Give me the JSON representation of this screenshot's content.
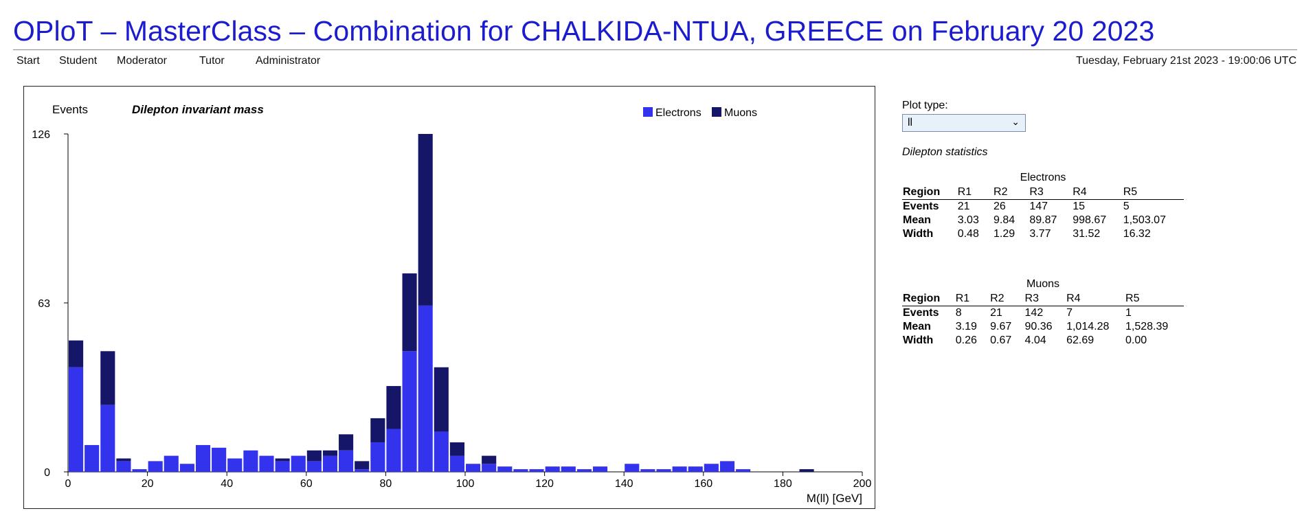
{
  "header": {
    "title": "OPloT – MasterClass – Combination for CHALKIDA-NTUA, GREECE on February 20 2023",
    "nav": [
      "Start",
      "Student",
      "Moderator",
      "Tutor",
      "Administrator"
    ],
    "datetime": "Tuesday, February 21st 2023 - 19:00:06 UTC"
  },
  "sidebar": {
    "plot_type_label": "Plot type:",
    "plot_type_value": "ll",
    "stats_title": "Dilepton statistics",
    "tables": [
      {
        "caption": "Electrons",
        "columns": [
          "Region",
          "R1",
          "R2",
          "R3",
          "R4",
          "R5"
        ],
        "rows": [
          [
            "Events",
            "21",
            "26",
            "147",
            "15",
            "5"
          ],
          [
            "Mean",
            "3.03",
            "9.84",
            "89.87",
            "998.67",
            "1,503.07"
          ],
          [
            "Width",
            "0.48",
            "1.29",
            "3.77",
            "31.52",
            "16.32"
          ]
        ]
      },
      {
        "caption": "Muons",
        "columns": [
          "Region",
          "R1",
          "R2",
          "R3",
          "R4",
          "R5"
        ],
        "rows": [
          [
            "Events",
            "8",
            "21",
            "142",
            "7",
            "1"
          ],
          [
            "Mean",
            "3.19",
            "9.67",
            "90.36",
            "1,014.28",
            "1,528.39"
          ],
          [
            "Width",
            "0.26",
            "0.67",
            "4.04",
            "62.69",
            "0.00"
          ]
        ]
      }
    ]
  },
  "chart_data": {
    "type": "bar",
    "stacked": true,
    "title": "Dilepton invariant mass",
    "ylabel": "Events",
    "xlabel": "M(ll) [GeV]",
    "xlim": [
      0,
      200
    ],
    "ylim": [
      0,
      126
    ],
    "x_ticks": [
      "0",
      "20",
      "40",
      "60",
      "80",
      "100",
      "120",
      "140",
      "160",
      "180",
      "200"
    ],
    "y_ticks": [
      "0",
      "63",
      "126"
    ],
    "bin_width": 4,
    "bin_starts": [
      0,
      4,
      8,
      12,
      16,
      20,
      24,
      28,
      32,
      36,
      40,
      44,
      48,
      52,
      56,
      60,
      64,
      68,
      72,
      76,
      80,
      84,
      88,
      92,
      96,
      100,
      104,
      108,
      112,
      116,
      120,
      124,
      128,
      132,
      136,
      140,
      144,
      148,
      152,
      156,
      160,
      164,
      168,
      172,
      176,
      180,
      184,
      188,
      192,
      196
    ],
    "legend_position": "top-right",
    "series": [
      {
        "name": "Electrons",
        "color": "#3333ee",
        "values": [
          39,
          10,
          25,
          4,
          1,
          4,
          6,
          3,
          10,
          9,
          5,
          8,
          6,
          4,
          6,
          4,
          6,
          8,
          1,
          11,
          16,
          45,
          62,
          15,
          6,
          3,
          3,
          2,
          1,
          1,
          2,
          2,
          1,
          2,
          0,
          3,
          1,
          1,
          2,
          2,
          3,
          4,
          1,
          0,
          0,
          0,
          0,
          0,
          0,
          0
        ]
      },
      {
        "name": "Muons",
        "color": "#161669",
        "values": [
          10,
          0,
          20,
          1,
          0,
          0,
          0,
          0,
          0,
          0,
          0,
          0,
          0,
          1,
          0,
          4,
          2,
          6,
          3,
          9,
          16,
          29,
          64,
          24,
          5,
          0,
          3,
          0,
          0,
          0,
          0,
          0,
          0,
          0,
          0,
          0,
          0,
          0,
          0,
          0,
          0,
          0,
          0,
          0,
          0,
          0,
          1,
          0,
          0,
          0
        ]
      }
    ]
  }
}
